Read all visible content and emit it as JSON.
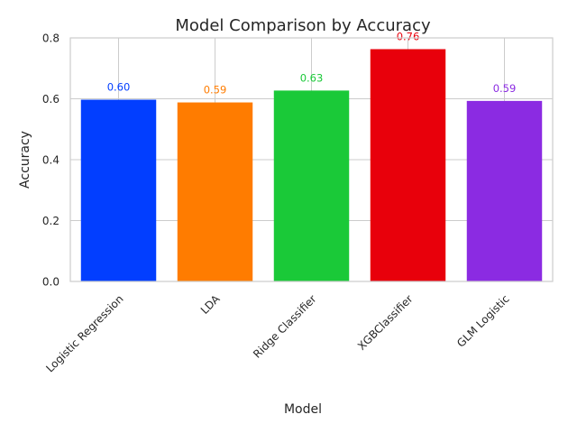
{
  "chart_data": {
    "type": "bar",
    "title": "Model Comparison by Accuracy",
    "xlabel": "Model",
    "ylabel": "Accuracy",
    "categories": [
      "Logistic Regression",
      "LDA",
      "Ridge Classifier",
      "XGBClassifier",
      "GLM Logistic"
    ],
    "values": [
      0.597,
      0.588,
      0.627,
      0.763,
      0.593
    ],
    "value_labels": [
      "0.60",
      "0.59",
      "0.63",
      "0.76",
      "0.59"
    ],
    "colors": [
      "#023eff",
      "#ff7c00",
      "#1ac938",
      "#e8000b",
      "#8b2be2"
    ],
    "ylim": [
      0,
      0.8
    ],
    "yticks": [
      0.0,
      0.2,
      0.4,
      0.6,
      0.8
    ],
    "ytick_labels": [
      "0.0",
      "0.2",
      "0.4",
      "0.6",
      "0.8"
    ],
    "grid": true,
    "legend": "none"
  }
}
